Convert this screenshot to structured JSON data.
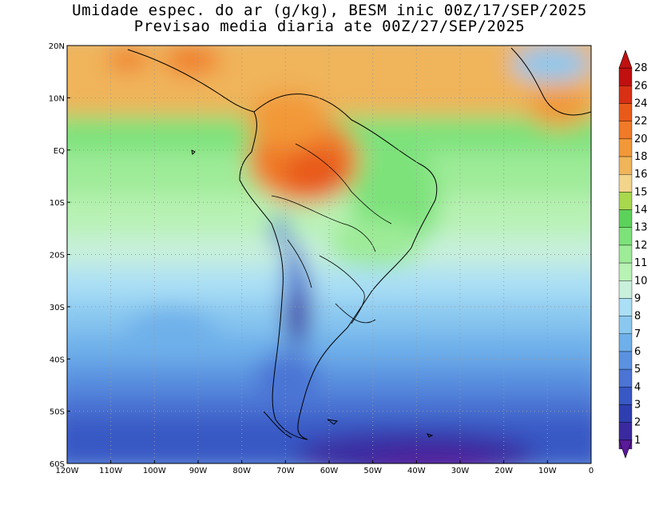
{
  "title": {
    "line1": "Umidade espec. do ar (g/kg), BESM inic 00Z/17/SEP/2025",
    "line2": "Previsao media diaria ate 00Z/27/SEP/2025"
  },
  "map": {
    "lon_range": [
      -120,
      0
    ],
    "lat_range": [
      -60,
      20
    ],
    "lon_ticks": [
      "120W",
      "110W",
      "100W",
      "90W",
      "80W",
      "70W",
      "60W",
      "50W",
      "40W",
      "30W",
      "20W",
      "10W",
      "0"
    ],
    "lat_ticks": [
      "20N",
      "10N",
      "EQ",
      "10S",
      "20S",
      "30S",
      "40S",
      "50S",
      "60S"
    ],
    "grid": "dotted"
  },
  "colorbar": {
    "levels": [
      "1",
      "2",
      "3",
      "4",
      "5",
      "6",
      "7",
      "8",
      "9",
      "10",
      "11",
      "12",
      "13",
      "14",
      "15",
      "16",
      "18",
      "20",
      "22",
      "24",
      "26",
      "28"
    ],
    "colors": [
      "#5a1a9a",
      "#3a2aa0",
      "#2f3fb0",
      "#3858c4",
      "#4b74d4",
      "#5a92e0",
      "#6eb0ea",
      "#8ac8f0",
      "#aadff5",
      "#c8f0dc",
      "#b8f2b4",
      "#9eeb98",
      "#7de27a",
      "#5cd25a",
      "#a8d84e",
      "#f2d48a",
      "#f0b45a",
      "#f29838",
      "#f07a28",
      "#e85a1a",
      "#d83014",
      "#c01010"
    ]
  }
}
